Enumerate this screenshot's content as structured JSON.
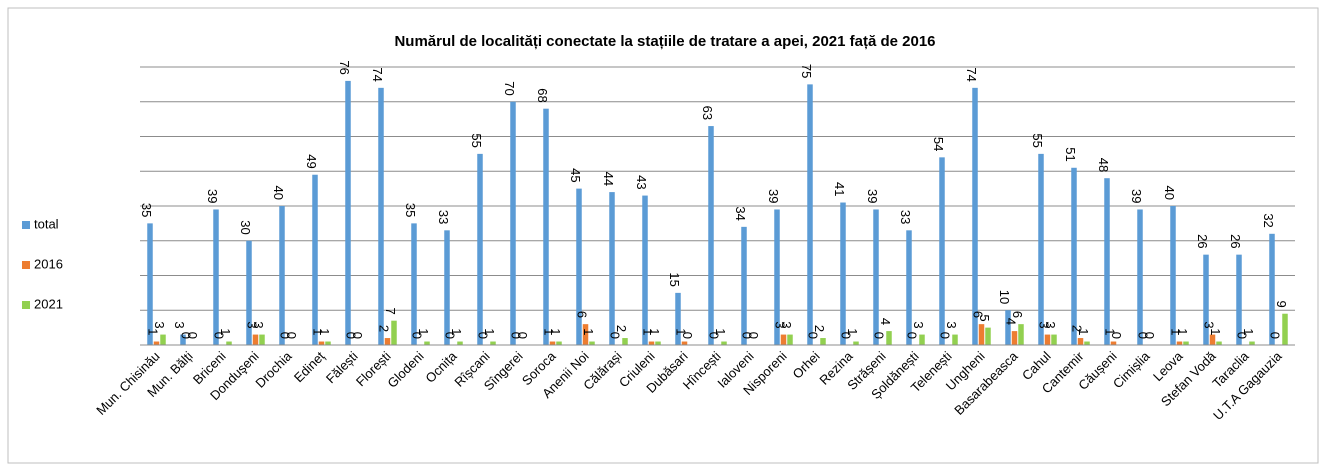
{
  "chart_data": {
    "type": "bar",
    "title": "Numărul de localități conectate la stațiile de tratare a apei, 2021 față de 2016",
    "categories": [
      "Mun. Chisinău",
      "Mun. Bălți",
      "Briceni",
      "Donduşeni",
      "Drochia",
      "Edineț",
      "Fălești",
      "Florești",
      "Glodeni",
      "Ocnița",
      "Rîșcani",
      "Sîngerei",
      "Soroca",
      "Anenii Noi",
      "Călărași",
      "Criuleni",
      "Dubăsari",
      "Hîncești",
      "Ialoveni",
      "Nisporeni",
      "Orhei",
      "Rezina",
      "Strășeni",
      "Șoldănești",
      "Telenești",
      "Ungheni",
      "Basarabeasca",
      "Cahul",
      "Cantemir",
      "Căușeni",
      "Cimișlia",
      "Leova",
      "Stefan Vodă",
      "Taraclia",
      "U.T.A Gagauzia"
    ],
    "series": [
      {
        "name": "total",
        "color": "#5b9bd5",
        "values": [
          35,
          3,
          39,
          30,
          40,
          49,
          76,
          74,
          35,
          33,
          55,
          70,
          68,
          45,
          44,
          43,
          15,
          63,
          34,
          39,
          75,
          41,
          39,
          33,
          54,
          74,
          10,
          55,
          51,
          48,
          39,
          40,
          26,
          26,
          32
        ]
      },
      {
        "name": "2016",
        "color": "#ed7d31",
        "values": [
          1,
          0,
          0,
          3,
          0,
          1,
          0,
          2,
          0,
          0,
          0,
          0,
          1,
          6,
          0,
          1,
          1,
          0,
          0,
          3,
          0,
          0,
          0,
          0,
          0,
          6,
          4,
          3,
          2,
          1,
          0,
          1,
          3,
          0,
          0
        ]
      },
      {
        "name": "2021",
        "color": "#92d050",
        "values": [
          3,
          0,
          1,
          3,
          0,
          1,
          0,
          7,
          1,
          1,
          1,
          0,
          1,
          1,
          2,
          1,
          0,
          1,
          0,
          3,
          2,
          1,
          4,
          3,
          3,
          5,
          6,
          3,
          1,
          0,
          0,
          1,
          1,
          1,
          9
        ]
      }
    ],
    "ylim": [
      0,
      80
    ],
    "yticks": [
      0,
      10,
      20,
      30,
      40,
      50,
      60,
      70,
      80
    ],
    "grid": true,
    "legend": "left"
  }
}
